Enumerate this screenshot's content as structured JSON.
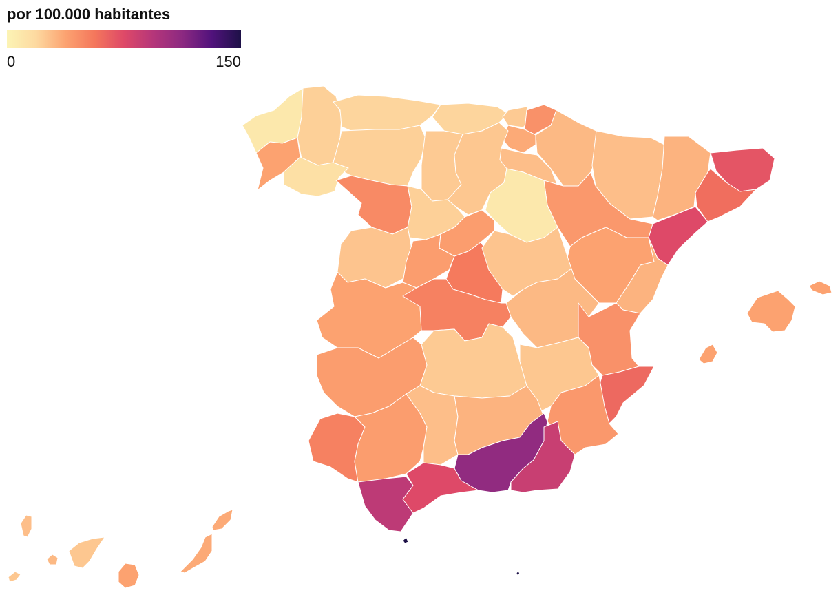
{
  "legend": {
    "title": "por 100.000 habitantes",
    "min_label": "0",
    "max_label": "150",
    "min": 0,
    "max": 150,
    "palette": [
      "#fcf4b5",
      "#fdd9a0",
      "#fca371",
      "#f4775c",
      "#de4968",
      "#b5367a",
      "#8c2981",
      "#51127c",
      "#1d1147"
    ]
  },
  "colors": {
    "stroke": "#ffffff",
    "background": "#ffffff"
  },
  "chart_data": {
    "type": "choropleth",
    "regions": [
      {
        "name": "A Coruña",
        "value": 8
      },
      {
        "name": "Lugo",
        "value": 22
      },
      {
        "name": "Pontevedra",
        "value": 38
      },
      {
        "name": "Ourense",
        "value": 14
      },
      {
        "name": "Asturias",
        "value": 20
      },
      {
        "name": "Cantabria",
        "value": 20
      },
      {
        "name": "Bizkaia",
        "value": 24
      },
      {
        "name": "Gipuzkoa",
        "value": 45
      },
      {
        "name": "Araba",
        "value": 35
      },
      {
        "name": "Navarra",
        "value": 30
      },
      {
        "name": "La Rioja",
        "value": 28
      },
      {
        "name": "Huesca",
        "value": 28
      },
      {
        "name": "Lleida",
        "value": 32
      },
      {
        "name": "Girona",
        "value": 70
      },
      {
        "name": "Barcelona",
        "value": 60
      },
      {
        "name": "Tarragona",
        "value": 75
      },
      {
        "name": "Zaragoza",
        "value": 42
      },
      {
        "name": "Teruel",
        "value": 38
      },
      {
        "name": "Castellón",
        "value": 32
      },
      {
        "name": "León",
        "value": 22
      },
      {
        "name": "Palencia",
        "value": 24
      },
      {
        "name": "Burgos",
        "value": 25
      },
      {
        "name": "Zamora",
        "value": 48
      },
      {
        "name": "Valladolid",
        "value": 22
      },
      {
        "name": "Soria",
        "value": 8
      },
      {
        "name": "Salamanca",
        "value": 26
      },
      {
        "name": "Ávila",
        "value": 40
      },
      {
        "name": "Segovia",
        "value": 40
      },
      {
        "name": "Madrid",
        "value": 55
      },
      {
        "name": "Guadalajara",
        "value": 26
      },
      {
        "name": "Cuenca",
        "value": 30
      },
      {
        "name": "Cáceres",
        "value": 38
      },
      {
        "name": "Toledo",
        "value": 52
      },
      {
        "name": "Badajoz",
        "value": 40
      },
      {
        "name": "Ciudad Real",
        "value": 24
      },
      {
        "name": "Albacete",
        "value": 25
      },
      {
        "name": "Valencia",
        "value": 45
      },
      {
        "name": "Alicante",
        "value": 62
      },
      {
        "name": "Murcia",
        "value": 42
      },
      {
        "name": "Huelva",
        "value": 52
      },
      {
        "name": "Sevilla",
        "value": 40
      },
      {
        "name": "Córdoba",
        "value": 28
      },
      {
        "name": "Jaén",
        "value": 32
      },
      {
        "name": "Cádiz",
        "value": 90
      },
      {
        "name": "Málaga",
        "value": 75
      },
      {
        "name": "Granada",
        "value": 110
      },
      {
        "name": "Almería",
        "value": 85
      },
      {
        "name": "Mallorca",
        "value": 38
      },
      {
        "name": "Menorca",
        "value": 38
      },
      {
        "name": "Ibiza",
        "value": 38
      },
      {
        "name": "La Palma",
        "value": 28
      },
      {
        "name": "Tenerife",
        "value": 25
      },
      {
        "name": "La Gomera",
        "value": 30
      },
      {
        "name": "El Hierro",
        "value": 25
      },
      {
        "name": "Gran Canaria",
        "value": 38
      },
      {
        "name": "Fuerteventura",
        "value": 35
      },
      {
        "name": "Lanzarote",
        "value": 35
      },
      {
        "name": "Ceuta",
        "value": 150
      },
      {
        "name": "Melilla",
        "value": 150
      }
    ]
  }
}
